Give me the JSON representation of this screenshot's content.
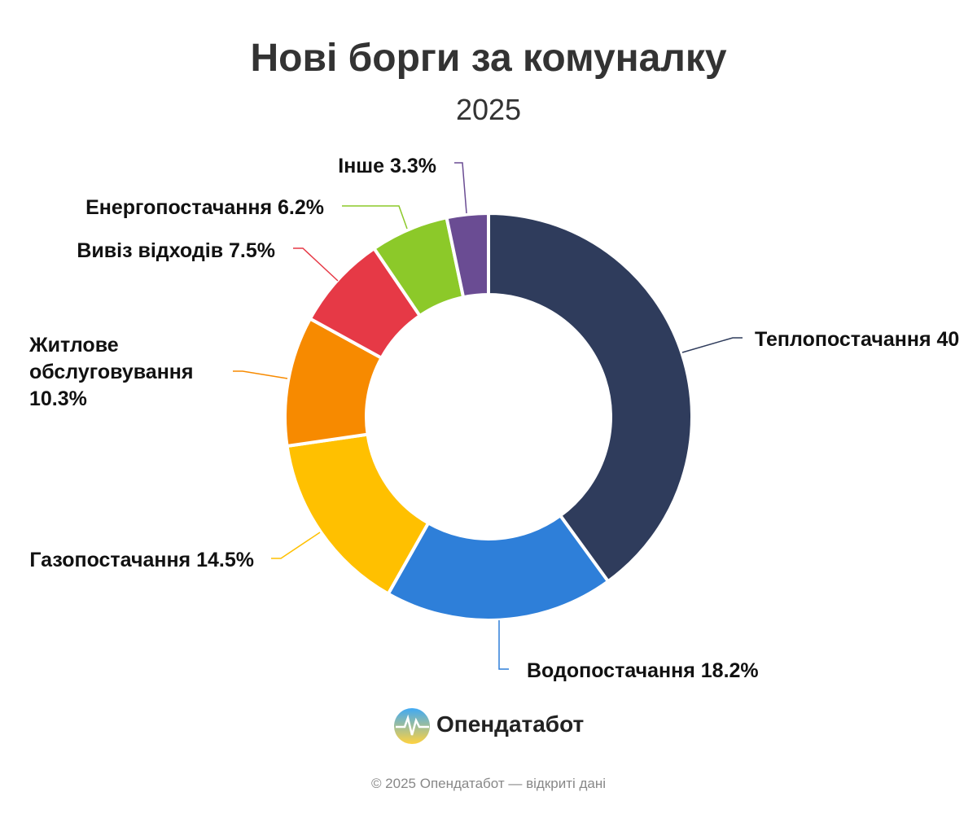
{
  "chart_data": {
    "type": "donut",
    "title": "Нові борги за комуналку",
    "subtitle": "2025",
    "categories": [
      "Теплопостачання",
      "Водопостачання",
      "Газопостачання",
      "Житлове обслуговування",
      "Вивіз відходів",
      "Енергопостачання",
      "Інше"
    ],
    "values": [
      40,
      18.2,
      14.5,
      10.3,
      7.5,
      6.2,
      3.3
    ],
    "value_labels": [
      "40",
      "18.2%",
      "14.5%",
      "10.3%",
      "7.5%",
      "6.2%",
      "3.3%"
    ],
    "colors": [
      "#2f3c5c",
      "#2e7fd9",
      "#ffc000",
      "#f78a00",
      "#e63946",
      "#8cc929",
      "#6a4c93"
    ]
  },
  "footer": {
    "brand": "Опендатабот",
    "copyright": "© 2025 Опендатабот — відкриті дані"
  }
}
